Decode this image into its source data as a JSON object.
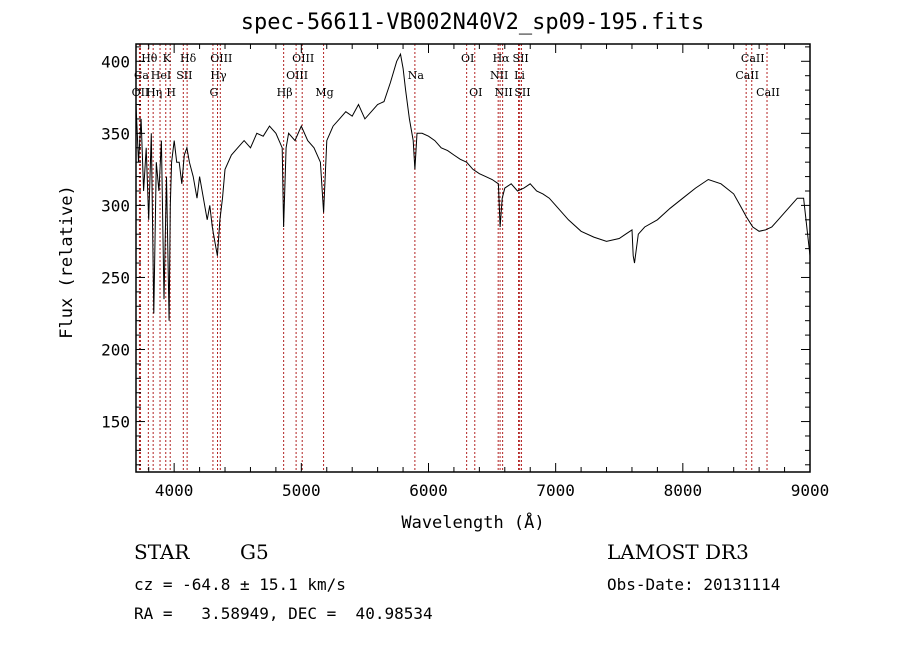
{
  "chart_data": {
    "type": "line",
    "title": "spec-56611-VB002N40V2_sp09-195.fits",
    "xlabel": "Wavelength (Å)",
    "ylabel": "Flux (relative)",
    "xlim": [
      3700,
      9000
    ],
    "ylim": [
      115,
      412
    ],
    "xticks": [
      4000,
      5000,
      6000,
      7000,
      8000,
      9000
    ],
    "xtick_labels": [
      "4000",
      "5000",
      "6000",
      "7000",
      "8000",
      "9000"
    ],
    "yticks": [
      150,
      200,
      250,
      300,
      350,
      400
    ],
    "ytick_labels": [
      "150",
      "200",
      "250",
      "300",
      "350",
      "400"
    ],
    "line_color": "#000000",
    "marker_color": "#b22222",
    "series": [
      {
        "name": "flux",
        "x": [
          3700,
          3720,
          3740,
          3760,
          3780,
          3800,
          3820,
          3840,
          3860,
          3880,
          3900,
          3920,
          3940,
          3960,
          3970,
          3980,
          4000,
          4020,
          4040,
          4060,
          4080,
          4100,
          4120,
          4150,
          4180,
          4200,
          4230,
          4260,
          4280,
          4300,
          4320,
          4340,
          4360,
          4380,
          4400,
          4450,
          4500,
          4550,
          4600,
          4650,
          4700,
          4750,
          4800,
          4850,
          4861,
          4880,
          4900,
          4950,
          5000,
          5050,
          5100,
          5150,
          5175,
          5200,
          5250,
          5300,
          5350,
          5400,
          5450,
          5500,
          5550,
          5600,
          5650,
          5700,
          5750,
          5780,
          5800,
          5820,
          5850,
          5880,
          5893,
          5910,
          5950,
          6000,
          6050,
          6100,
          6150,
          6200,
          6250,
          6300,
          6350,
          6400,
          6450,
          6500,
          6550,
          6563,
          6580,
          6600,
          6650,
          6700,
          6750,
          6800,
          6850,
          6900,
          6950,
          7000,
          7100,
          7200,
          7300,
          7400,
          7500,
          7550,
          7600,
          7610,
          7620,
          7650,
          7700,
          7800,
          7900,
          8000,
          8100,
          8200,
          8300,
          8400,
          8450,
          8500,
          8550,
          8600,
          8650,
          8700,
          8750,
          8800,
          8850,
          8900,
          8950,
          9000
        ],
        "y": [
          370,
          330,
          360,
          310,
          340,
          290,
          350,
          225,
          330,
          310,
          345,
          235,
          320,
          220,
          300,
          330,
          345,
          330,
          330,
          315,
          335,
          340,
          330,
          320,
          305,
          320,
          305,
          290,
          300,
          285,
          275,
          265,
          290,
          305,
          325,
          335,
          340,
          345,
          340,
          350,
          348,
          355,
          350,
          340,
          285,
          340,
          350,
          345,
          355,
          345,
          340,
          330,
          295,
          345,
          355,
          360,
          365,
          362,
          370,
          360,
          365,
          370,
          372,
          385,
          400,
          405,
          395,
          380,
          360,
          345,
          325,
          350,
          350,
          348,
          345,
          340,
          338,
          335,
          332,
          330,
          325,
          322,
          320,
          318,
          315,
          285,
          305,
          312,
          315,
          310,
          312,
          315,
          310,
          308,
          305,
          300,
          290,
          282,
          278,
          275,
          277,
          280,
          283,
          265,
          260,
          280,
          285,
          290,
          298,
          305,
          312,
          318,
          315,
          308,
          300,
          292,
          285,
          282,
          283,
          285,
          290,
          295,
          300,
          305,
          305,
          265
        ]
      }
    ],
    "lines": [
      {
        "name": "Hθ",
        "x": 3797,
        "row": 1
      },
      {
        "name": "OII",
        "x": 3727,
        "row": 3
      },
      {
        "name": "Ca",
        "x": 3735,
        "row": 2
      },
      {
        "name": "Hη",
        "x": 3835,
        "row": 3
      },
      {
        "name": "K",
        "x": 3934,
        "row": 1
      },
      {
        "name": "HeI",
        "x": 3889,
        "row": 2
      },
      {
        "name": "H",
        "x": 3969,
        "row": 3
      },
      {
        "name": "SII",
        "x": 4072,
        "row": 2
      },
      {
        "name": "Hδ",
        "x": 4102,
        "row": 1
      },
      {
        "name": "OIII",
        "x": 4363,
        "row": 1
      },
      {
        "name": "Hγ",
        "x": 4341,
        "row": 2
      },
      {
        "name": "G",
        "x": 4305,
        "row": 3
      },
      {
        "name": "Hβ",
        "x": 4861,
        "row": 3
      },
      {
        "name": "OIII",
        "x": 5007,
        "row": 1
      },
      {
        "name": "OIII",
        "x": 4959,
        "row": 2
      },
      {
        "name": "Mg",
        "x": 5175,
        "row": 3
      },
      {
        "name": "Na",
        "x": 5893,
        "row": 2
      },
      {
        "name": "OI",
        "x": 6300,
        "row": 1
      },
      {
        "name": "OI",
        "x": 6364,
        "row": 3
      },
      {
        "name": "Hα",
        "x": 6563,
        "row": 1
      },
      {
        "name": "NII",
        "x": 6548,
        "row": 2
      },
      {
        "name": "NII",
        "x": 6583,
        "row": 3
      },
      {
        "name": "SII",
        "x": 6717,
        "row": 1
      },
      {
        "name": "Li",
        "x": 6708,
        "row": 2
      },
      {
        "name": "SII",
        "x": 6731,
        "row": 3
      },
      {
        "name": "CaII",
        "x": 8542,
        "row": 1
      },
      {
        "name": "CaII",
        "x": 8498,
        "row": 2
      },
      {
        "name": "CaII",
        "x": 8662,
        "row": 3
      }
    ]
  },
  "info": {
    "object_class": "STAR",
    "subclass": "G5",
    "survey": "LAMOST DR3",
    "cz": "cz = -64.8 ± 15.1 km/s",
    "obs_date": "Obs-Date: 20131114",
    "coords": "RA =   3.58949, DEC =  40.98534"
  }
}
